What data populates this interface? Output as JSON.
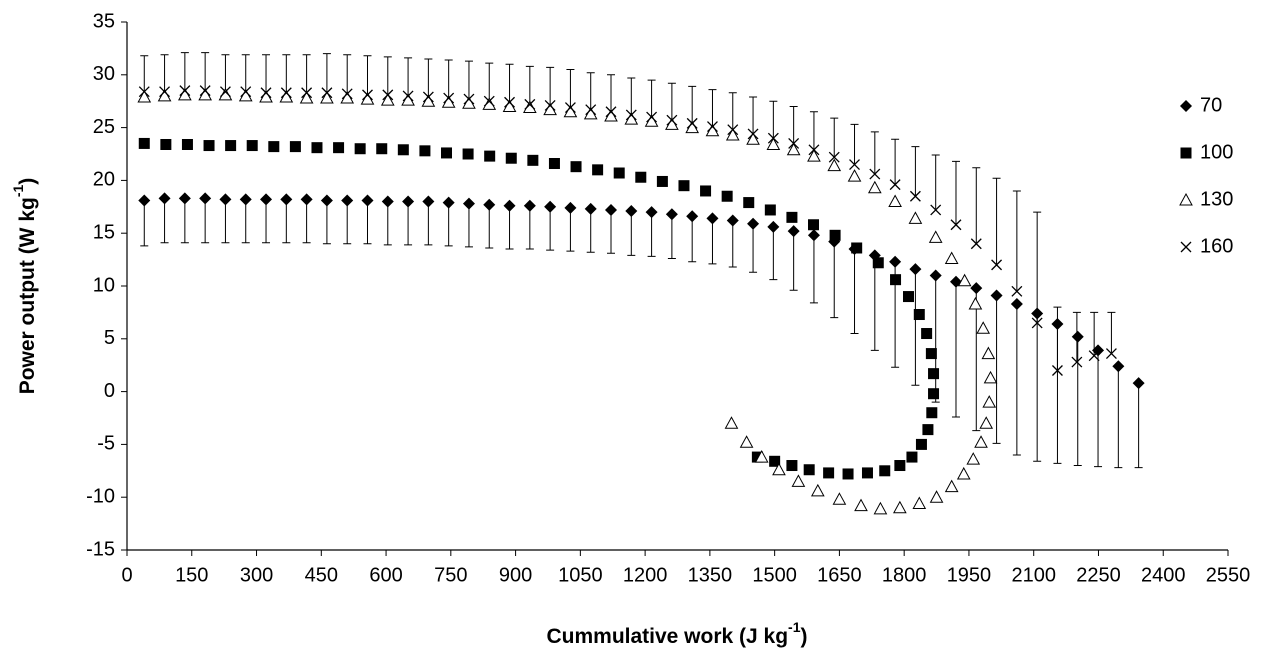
{
  "chart_data": {
    "type": "scatter",
    "xlabel": [
      "Cummulative work (J kg",
      "-1",
      ")"
    ],
    "ylabel": [
      "Power output (W kg",
      "-1",
      ")"
    ],
    "xlim": [
      0,
      2550
    ],
    "ylim": [
      -15,
      35
    ],
    "xticks": [
      0,
      150,
      300,
      450,
      600,
      750,
      900,
      1050,
      1200,
      1350,
      1500,
      1650,
      1800,
      1950,
      2100,
      2250,
      2400,
      2550
    ],
    "yticks": [
      -15,
      -10,
      -5,
      0,
      5,
      10,
      15,
      20,
      25,
      30,
      35
    ],
    "grid": false,
    "legend": "right",
    "series": [
      {
        "name": "70",
        "color": "#000000",
        "marker": "diamond",
        "error_direction": "minus",
        "x": [
          40,
          87,
          134,
          181,
          228,
          275,
          322,
          369,
          416,
          463,
          510,
          557,
          604,
          651,
          698,
          745,
          792,
          839,
          886,
          933,
          980,
          1027,
          1074,
          1121,
          1168,
          1215,
          1262,
          1309,
          1356,
          1403,
          1450,
          1497,
          1544,
          1591,
          1638,
          1685,
          1732,
          1779,
          1826,
          1873,
          1920,
          1967,
          2014,
          2061,
          2108,
          2155,
          2202,
          2249,
          2296,
          2343
        ],
        "values": [
          18.1,
          18.3,
          18.3,
          18.3,
          18.2,
          18.2,
          18.2,
          18.2,
          18.2,
          18.1,
          18.1,
          18.1,
          18.0,
          18.0,
          18.0,
          17.9,
          17.8,
          17.7,
          17.6,
          17.6,
          17.5,
          17.4,
          17.3,
          17.2,
          17.1,
          17.0,
          16.8,
          16.6,
          16.4,
          16.2,
          15.9,
          15.6,
          15.2,
          14.8,
          14.2,
          13.5,
          12.9,
          12.3,
          11.6,
          11.0,
          10.4,
          9.8,
          9.1,
          8.3,
          7.4,
          6.4,
          5.2,
          3.9,
          2.4,
          0.8
        ],
        "errors": [
          4.3,
          4.2,
          4.2,
          4.2,
          4.1,
          4.1,
          4.1,
          4.1,
          4.1,
          4.1,
          4.1,
          4.1,
          4.1,
          4.1,
          4.1,
          4.1,
          4.1,
          4.1,
          4.1,
          4.1,
          4.1,
          4.1,
          4.1,
          4.1,
          4.2,
          4.2,
          4.2,
          4.3,
          4.3,
          4.4,
          4.6,
          5.0,
          5.6,
          6.4,
          7.2,
          8.0,
          9.0,
          10.0,
          11.0,
          12.0,
          12.8,
          13.5,
          14.0,
          14.3,
          14.0,
          13.2,
          12.2,
          11.0,
          9.6,
          8.0
        ]
      },
      {
        "name": "100",
        "color": "#000000",
        "marker": "square",
        "x": [
          40,
          90,
          140,
          190,
          240,
          290,
          340,
          390,
          440,
          490,
          540,
          590,
          640,
          690,
          740,
          790,
          840,
          890,
          940,
          990,
          1040,
          1090,
          1140,
          1190,
          1240,
          1290,
          1340,
          1390,
          1440,
          1490,
          1540,
          1590,
          1640,
          1690,
          1740,
          1780,
          1810,
          1835,
          1852,
          1863,
          1868,
          1868,
          1864,
          1855,
          1840,
          1818,
          1790,
          1755,
          1715,
          1670,
          1625,
          1580,
          1540,
          1500,
          1460
        ],
        "values": [
          23.5,
          23.4,
          23.4,
          23.3,
          23.3,
          23.3,
          23.2,
          23.2,
          23.1,
          23.1,
          23.0,
          23.0,
          22.9,
          22.8,
          22.6,
          22.5,
          22.3,
          22.1,
          21.9,
          21.6,
          21.3,
          21.0,
          20.7,
          20.3,
          19.9,
          19.5,
          19.0,
          18.5,
          17.9,
          17.2,
          16.5,
          15.8,
          14.8,
          13.6,
          12.2,
          10.6,
          9.0,
          7.3,
          5.5,
          3.6,
          1.7,
          -0.2,
          -2.0,
          -3.6,
          -5.0,
          -6.2,
          -7.0,
          -7.5,
          -7.7,
          -7.8,
          -7.7,
          -7.4,
          -7.0,
          -6.6,
          -6.2
        ]
      },
      {
        "name": "130",
        "color": "#000000",
        "marker": "triangle",
        "x": [
          40,
          87,
          134,
          181,
          228,
          275,
          322,
          369,
          416,
          463,
          510,
          557,
          604,
          651,
          698,
          745,
          792,
          839,
          886,
          933,
          980,
          1027,
          1074,
          1121,
          1168,
          1215,
          1262,
          1309,
          1356,
          1403,
          1450,
          1497,
          1544,
          1591,
          1638,
          1685,
          1732,
          1779,
          1826,
          1873,
          1910,
          1940,
          1965,
          1983,
          1995,
          2000,
          1997,
          1990,
          1978,
          1960,
          1938,
          1910,
          1875,
          1835,
          1790,
          1745,
          1700,
          1650,
          1600,
          1555,
          1510,
          1470,
          1435,
          1400
        ],
        "values": [
          27.9,
          28.0,
          28.1,
          28.1,
          28.1,
          28.0,
          27.9,
          27.9,
          27.8,
          27.8,
          27.8,
          27.7,
          27.6,
          27.6,
          27.5,
          27.4,
          27.3,
          27.2,
          27.0,
          26.9,
          26.7,
          26.5,
          26.3,
          26.1,
          25.8,
          25.6,
          25.3,
          25.0,
          24.7,
          24.3,
          23.9,
          23.4,
          22.9,
          22.3,
          21.4,
          20.4,
          19.3,
          18.0,
          16.4,
          14.6,
          12.6,
          10.5,
          8.3,
          6.0,
          3.6,
          1.3,
          -1.0,
          -3.0,
          -4.8,
          -6.4,
          -7.8,
          -9.0,
          -10.0,
          -10.6,
          -11.0,
          -11.1,
          -10.8,
          -10.2,
          -9.4,
          -8.5,
          -7.4,
          -6.2,
          -4.8,
          -3.0
        ]
      },
      {
        "name": "160",
        "color": "#000000",
        "marker": "x",
        "error_direction": "plus",
        "x": [
          40,
          87,
          134,
          181,
          228,
          275,
          322,
          369,
          416,
          463,
          510,
          557,
          604,
          651,
          698,
          745,
          792,
          839,
          886,
          933,
          980,
          1027,
          1074,
          1121,
          1168,
          1215,
          1262,
          1309,
          1356,
          1403,
          1450,
          1497,
          1544,
          1591,
          1638,
          1685,
          1732,
          1779,
          1826,
          1873,
          1920,
          1967,
          2014,
          2061,
          2108,
          2155,
          2200,
          2240,
          2280
        ],
        "values": [
          28.4,
          28.4,
          28.5,
          28.5,
          28.4,
          28.4,
          28.3,
          28.3,
          28.3,
          28.3,
          28.2,
          28.1,
          28.1,
          28.0,
          27.9,
          27.8,
          27.7,
          27.5,
          27.4,
          27.2,
          27.1,
          26.9,
          26.7,
          26.5,
          26.2,
          26.0,
          25.7,
          25.4,
          25.1,
          24.8,
          24.4,
          24.0,
          23.5,
          22.9,
          22.2,
          21.5,
          20.6,
          19.6,
          18.5,
          17.2,
          15.8,
          14.0,
          12.0,
          9.5,
          6.5,
          2.0,
          2.8,
          3.4,
          3.6
        ],
        "errors": [
          3.4,
          3.5,
          3.6,
          3.6,
          3.5,
          3.5,
          3.6,
          3.6,
          3.6,
          3.7,
          3.7,
          3.7,
          3.6,
          3.6,
          3.6,
          3.6,
          3.6,
          3.6,
          3.6,
          3.6,
          3.6,
          3.6,
          3.5,
          3.5,
          3.5,
          3.5,
          3.5,
          3.5,
          3.5,
          3.5,
          3.5,
          3.5,
          3.5,
          3.6,
          3.7,
          3.8,
          4.0,
          4.3,
          4.7,
          5.2,
          6.0,
          7.2,
          8.2,
          9.5,
          10.5,
          6.0,
          4.7,
          4.1,
          3.9
        ]
      }
    ]
  }
}
